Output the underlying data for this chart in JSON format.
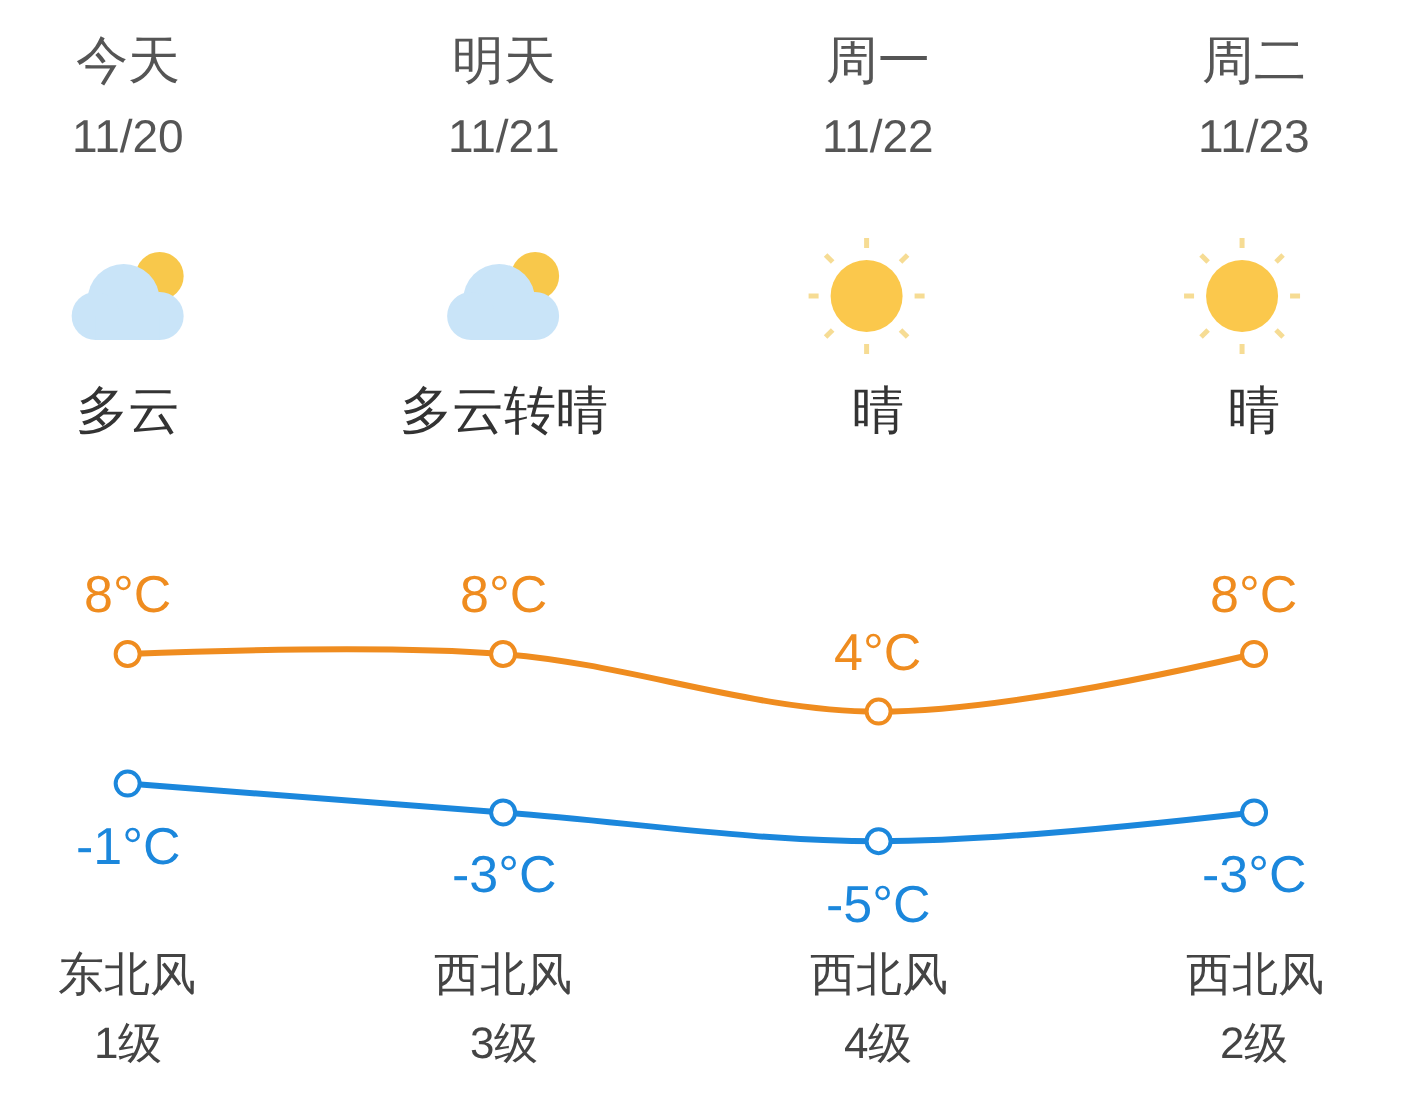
{
  "chart_data": {
    "type": "line",
    "categories": [
      "今天\n11/20",
      "明天\n11/21",
      "周一\n11/22",
      "周二\n11/23"
    ],
    "series": [
      {
        "color": "#ef8c1f",
        "values": [
          8,
          8,
          4,
          8
        ],
        "value_labels": [
          "8°C",
          "8°C",
          "4°C",
          "8°C"
        ]
      },
      {
        "color": "#1b87dc",
        "values": [
          -1,
          -3,
          -5,
          -3
        ],
        "value_labels": [
          "-1°C",
          "-3°C",
          "-5°C",
          "-3°C"
        ]
      }
    ],
    "annotations": [
      "多云",
      "多云转晴",
      "晴",
      "晴",
      "东北风",
      "西北风",
      "西北风",
      "西北风",
      "1级",
      "3级",
      "4级",
      "2级"
    ],
    "tick_labels": "x",
    "marker": "circle",
    "line_style": "solid"
  }
}
